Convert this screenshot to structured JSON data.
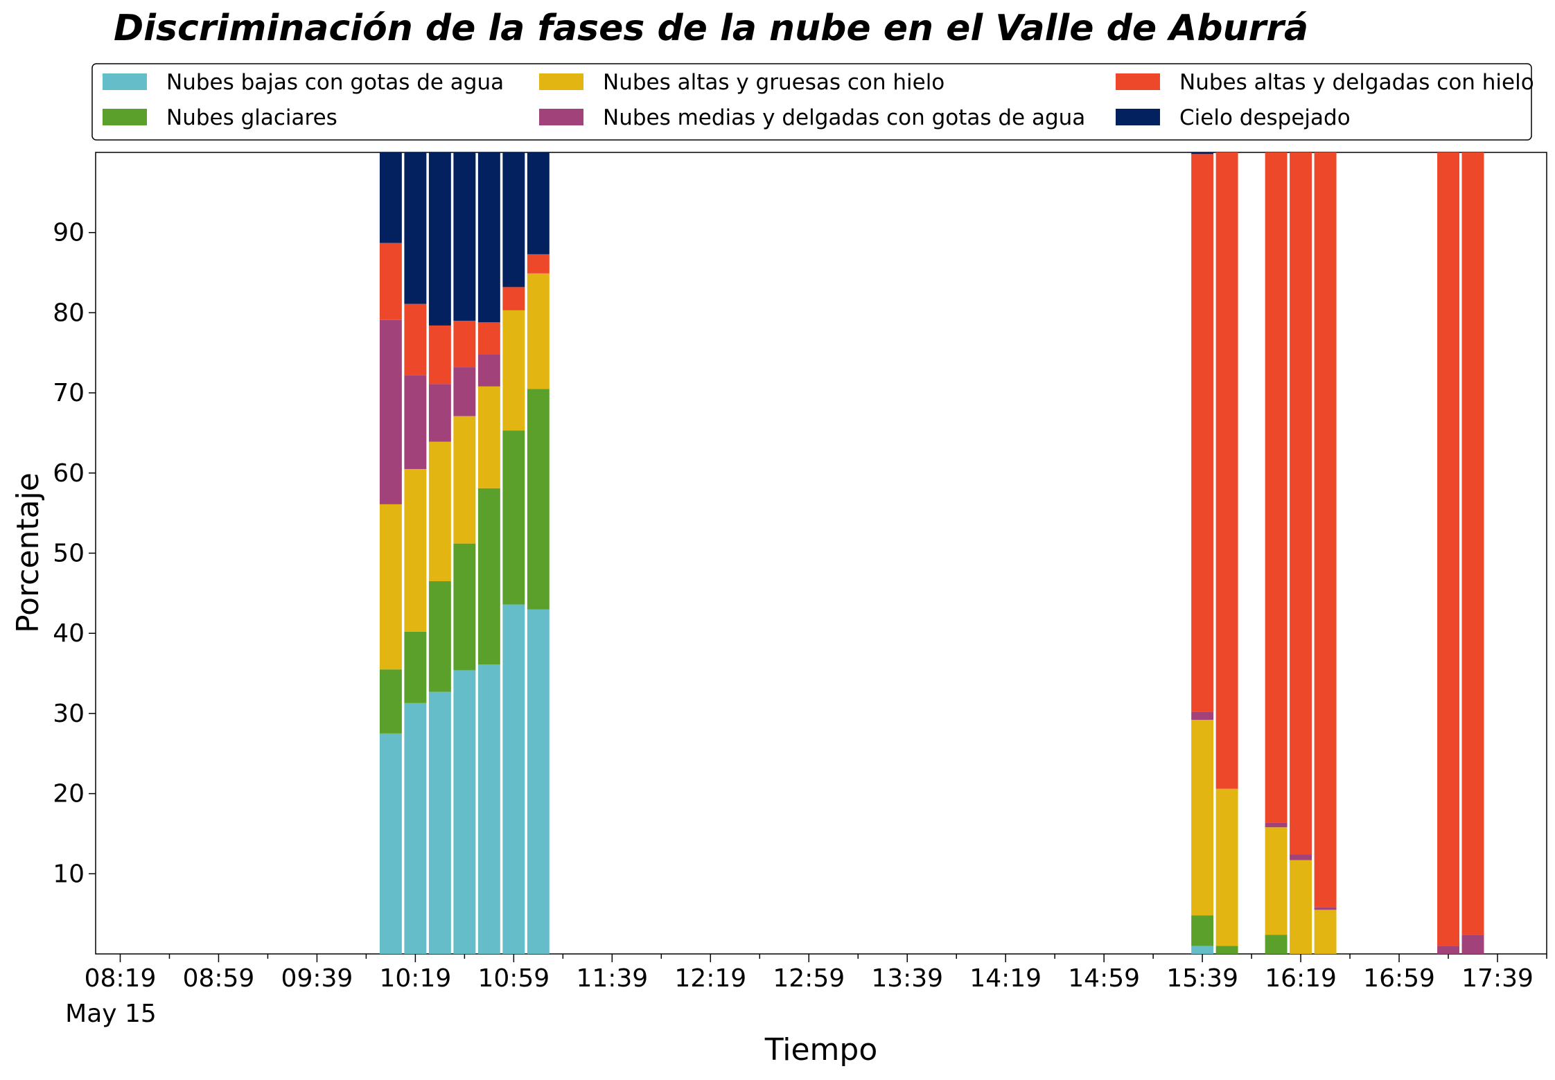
{
  "chart_data": {
    "type": "bar",
    "stacked": true,
    "title": "Discriminación de la fases de la nube en el Valle de Aburrá",
    "xlabel": "Tiempo",
    "ylabel": "Porcentaje",
    "ylim": [
      0,
      100
    ],
    "yticks": [
      10,
      20,
      30,
      40,
      50,
      60,
      70,
      80,
      90
    ],
    "x_axis_date_label": "May 15",
    "xticks_major": [
      "08:19",
      "08:59",
      "09:39",
      "10:19",
      "10:59",
      "11:39",
      "12:19",
      "12:59",
      "13:39",
      "14:19",
      "14:59",
      "15:39",
      "16:19",
      "16:59",
      "17:39"
    ],
    "xlim": [
      "08:09",
      "17:59"
    ],
    "bar_width_minutes": 9,
    "grid": false,
    "legend_placement": "top",
    "times": [
      "10:09",
      "10:19",
      "10:29",
      "10:39",
      "10:49",
      "10:59",
      "11:09",
      "15:39",
      "15:49",
      "16:09",
      "16:19",
      "16:29",
      "17:19",
      "17:29"
    ],
    "series": [
      {
        "name": "Nubes bajas con gotas de agua",
        "color": "#64bdc8",
        "values": [
          27.5,
          31.3,
          32.7,
          35.4,
          36.1,
          43.6,
          43.0,
          1.0,
          0.0,
          0.0,
          0.0,
          0.0,
          0.0,
          0.0
        ]
      },
      {
        "name": "Nubes glaciares",
        "color": "#5ba02a",
        "values": [
          8.0,
          8.9,
          13.8,
          15.8,
          22.0,
          21.7,
          27.5,
          3.8,
          1.0,
          2.4,
          0.0,
          0.0,
          0.0,
          0.0
        ]
      },
      {
        "name": "Nubes altas y gruesas con hielo",
        "color": "#e3b513",
        "values": [
          20.6,
          20.3,
          17.4,
          15.9,
          12.7,
          15.0,
          14.4,
          24.4,
          19.6,
          13.4,
          11.7,
          5.5,
          0.0,
          0.0
        ]
      },
      {
        "name": "Nubes medias y delgadas con gotas de agua",
        "color": "#a1427b",
        "values": [
          23.0,
          11.7,
          7.2,
          6.1,
          4.0,
          0.0,
          0.0,
          1.0,
          0.0,
          0.6,
          0.7,
          0.3,
          1.0,
          2.4
        ]
      },
      {
        "name": "Nubes altas y delgadas con hielo",
        "color": "#ee482a",
        "values": [
          9.6,
          8.9,
          7.3,
          5.8,
          4.0,
          2.9,
          2.4,
          69.6,
          79.4,
          83.6,
          87.6,
          94.2,
          99.0,
          97.6
        ]
      },
      {
        "name": "Cielo despejado",
        "color": "#03215e",
        "values": [
          11.3,
          18.9,
          21.6,
          21.0,
          21.2,
          16.8,
          12.7,
          0.2,
          0.0,
          0.0,
          0.0,
          0.0,
          0.0,
          0.0
        ]
      }
    ]
  }
}
